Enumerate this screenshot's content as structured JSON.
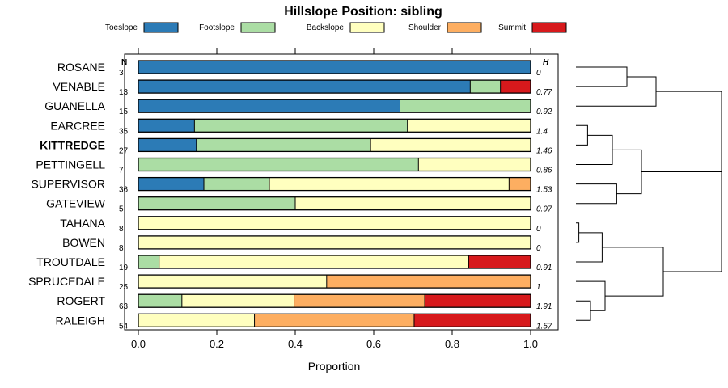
{
  "chart_data": {
    "type": "bar",
    "orientation": "horizontal-stacked",
    "title": "Hillslope Position: sibling",
    "xlabel": "Proportion",
    "xlim": [
      0,
      1
    ],
    "xticks": [
      "0.0",
      "0.2",
      "0.4",
      "0.6",
      "0.8",
      "1.0"
    ],
    "n_header": "N",
    "h_header": "H",
    "highlight": "KITTREDGE",
    "legend": [
      {
        "name": "Toeslope",
        "color": "#2c7bb6"
      },
      {
        "name": "Footslope",
        "color": "#abdda4"
      },
      {
        "name": "Backslope",
        "color": "#ffffbf"
      },
      {
        "name": "Shoulder",
        "color": "#fdae61"
      },
      {
        "name": "Summit",
        "color": "#d7191c"
      }
    ],
    "rows": [
      {
        "name": "ROSANE",
        "n": "3",
        "h": "0",
        "values": [
          1.0,
          0,
          0,
          0,
          0
        ]
      },
      {
        "name": "VENABLE",
        "n": "13",
        "h": "0.77",
        "values": [
          0.846,
          0.077,
          0,
          0,
          0.077
        ]
      },
      {
        "name": "GUANELLA",
        "n": "15",
        "h": "0.92",
        "values": [
          0.667,
          0.333,
          0,
          0,
          0
        ]
      },
      {
        "name": "EARCREE",
        "n": "35",
        "h": "1.4",
        "values": [
          0.143,
          0.543,
          0.314,
          0,
          0
        ]
      },
      {
        "name": "KITTREDGE",
        "n": "27",
        "h": "1.46",
        "values": [
          0.148,
          0.444,
          0.408,
          0,
          0
        ]
      },
      {
        "name": "PETTINGELL",
        "n": "7",
        "h": "0.86",
        "values": [
          0,
          0.714,
          0.286,
          0,
          0
        ]
      },
      {
        "name": "SUPERVISOR",
        "n": "36",
        "h": "1.53",
        "values": [
          0.167,
          0.167,
          0.611,
          0.055,
          0
        ]
      },
      {
        "name": "GATEVIEW",
        "n": "5",
        "h": "0.97",
        "values": [
          0,
          0.4,
          0.6,
          0,
          0
        ]
      },
      {
        "name": "TAHANA",
        "n": "8",
        "h": "0",
        "values": [
          0,
          0,
          1.0,
          0,
          0
        ]
      },
      {
        "name": "BOWEN",
        "n": "8",
        "h": "0",
        "values": [
          0,
          0,
          1.0,
          0,
          0
        ]
      },
      {
        "name": "TROUTDALE",
        "n": "19",
        "h": "0.91",
        "values": [
          0,
          0.053,
          0.789,
          0,
          0.158
        ]
      },
      {
        "name": "SPRUCEDALE",
        "n": "25",
        "h": "1",
        "values": [
          0,
          0,
          0.48,
          0.52,
          0
        ]
      },
      {
        "name": "ROGERT",
        "n": "63",
        "h": "1.91",
        "values": [
          0,
          0.111,
          0.286,
          0.333,
          0.27
        ]
      },
      {
        "name": "RALEIGH",
        "n": "54",
        "h": "1.57",
        "values": [
          0,
          0,
          0.296,
          0.407,
          0.297
        ]
      }
    ],
    "dendrogram": {
      "type": "dendrogram",
      "merges": [
        {
          "children": [
            "ROSANE",
            "VENABLE"
          ],
          "height": 0.35
        },
        {
          "children": [
            "node-1",
            "GUANELLA"
          ],
          "height": 0.55
        },
        {
          "children": [
            "EARCREE",
            "KITTREDGE"
          ],
          "height": 0.08
        },
        {
          "children": [
            "node-3",
            "PETTINGELL"
          ],
          "height": 0.25
        },
        {
          "children": [
            "SUPERVISOR",
            "GATEVIEW"
          ],
          "height": 0.28
        },
        {
          "children": [
            "node-4",
            "node-5"
          ],
          "height": 0.45
        },
        {
          "children": [
            "TAHANA",
            "BOWEN"
          ],
          "height": 0.02
        },
        {
          "children": [
            "node-7",
            "TROUTDALE"
          ],
          "height": 0.18
        },
        {
          "children": [
            "ROGERT",
            "RALEIGH"
          ],
          "height": 0.1
        },
        {
          "children": [
            "SPRUCEDALE",
            "node-9"
          ],
          "height": 0.2
        },
        {
          "children": [
            "node-8",
            "node-10"
          ],
          "height": 0.6
        },
        {
          "children": [
            "node-6",
            "node-11"
          ],
          "height": 1.0
        },
        {
          "children": [
            "node-2",
            "node-12"
          ],
          "height": 1.0
        }
      ]
    }
  }
}
